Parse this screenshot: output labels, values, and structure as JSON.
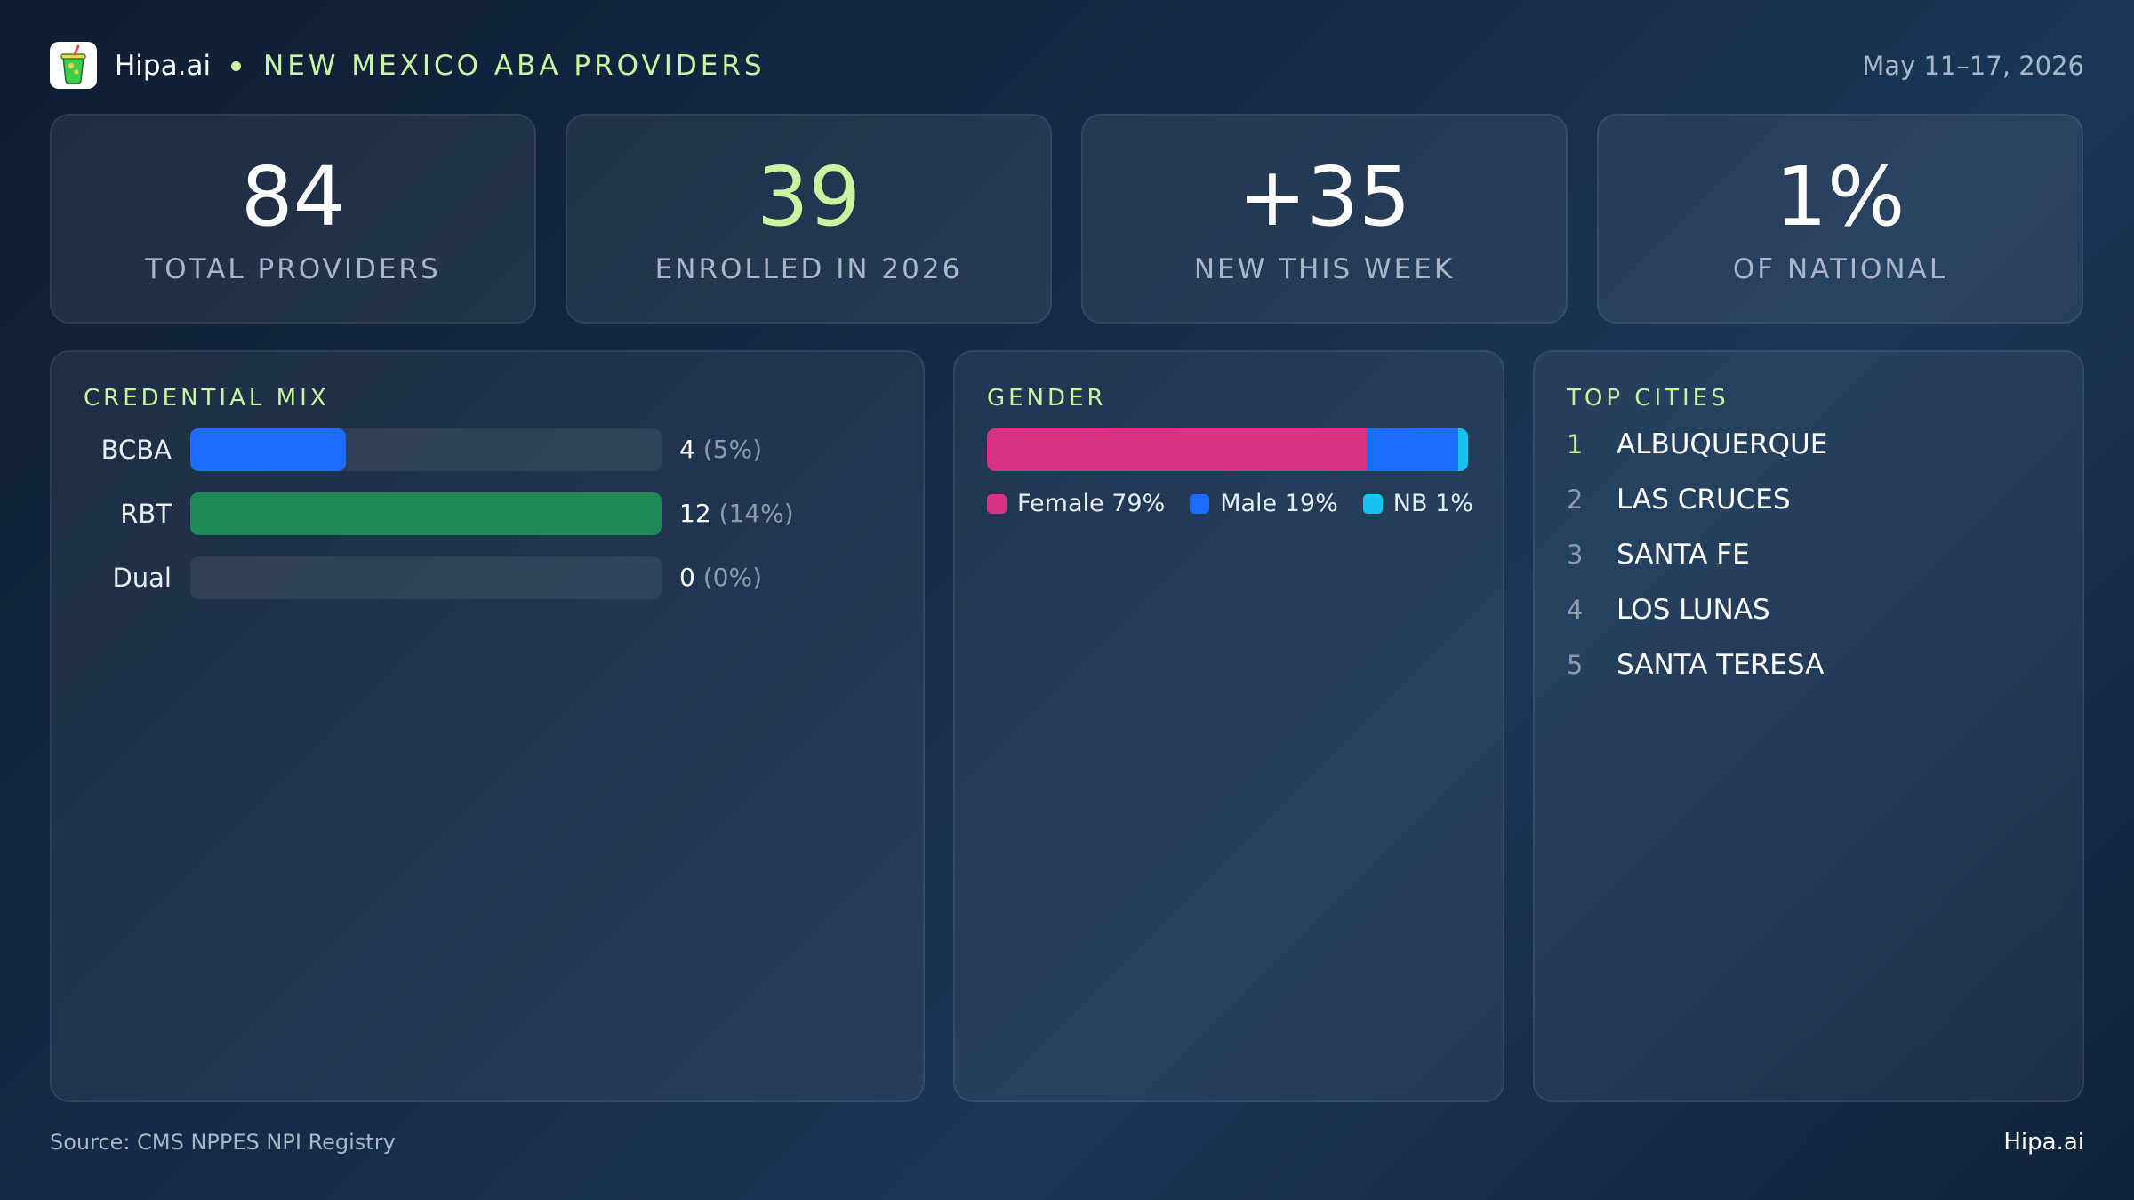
{
  "header": {
    "brand": "Hipa.ai",
    "logo_icon": "juice-cup-icon",
    "title": "NEW MEXICO ABA PROVIDERS",
    "date_range": "May 11–17, 2026"
  },
  "stats": [
    {
      "value": "84",
      "label": "TOTAL PROVIDERS",
      "accent": false
    },
    {
      "value": "39",
      "label": "ENROLLED IN 2026",
      "accent": true
    },
    {
      "value": "+35",
      "label": "NEW THIS WEEK",
      "accent": false
    },
    {
      "value": "1%",
      "label": "OF NATIONAL",
      "accent": false
    }
  ],
  "credential_mix": {
    "title": "CREDENTIAL MIX",
    "rows": [
      {
        "label": "BCBA",
        "count": "4",
        "pct_text": "(5%)",
        "bar_fraction": 0.33,
        "color": "#1a6dff"
      },
      {
        "label": "RBT",
        "count": "12",
        "pct_text": "(14%)",
        "bar_fraction": 1.0,
        "color": "#1d8a53"
      },
      {
        "label": "Dual",
        "count": "0",
        "pct_text": "(0%)",
        "bar_fraction": 0.0,
        "color": "#1a6dff"
      }
    ]
  },
  "gender": {
    "title": "GENDER",
    "segments": [
      {
        "label": "Female 79%",
        "percent": 79,
        "color": "#d63384"
      },
      {
        "label": "Male 19%",
        "percent": 19,
        "color": "#1a6dff"
      },
      {
        "label": "NB 1%",
        "percent": 1,
        "color": "#17c3f0"
      }
    ]
  },
  "top_cities": {
    "title": "TOP CITIES",
    "items": [
      {
        "rank": "1",
        "name": "ALBUQUERQUE"
      },
      {
        "rank": "2",
        "name": "LAS CRUCES"
      },
      {
        "rank": "3",
        "name": "SANTA FE"
      },
      {
        "rank": "4",
        "name": "LOS LUNAS"
      },
      {
        "rank": "5",
        "name": "SANTA TERESA"
      }
    ]
  },
  "footer": {
    "source": "Source: CMS NPPES NPI Registry",
    "brand": "Hipa.ai"
  },
  "colors": {
    "accent": "#c9f5a0",
    "muted_text": "#a9b6c7"
  }
}
